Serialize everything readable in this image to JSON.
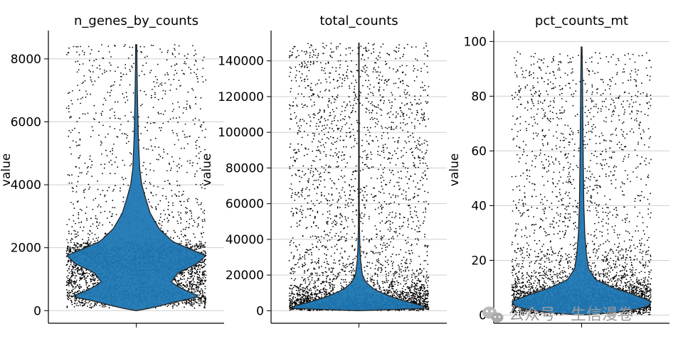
{
  "chart_data": [
    {
      "type": "violin",
      "title": "n_genes_by_counts",
      "ylabel": "value",
      "ylim": [
        -400,
        8900
      ],
      "yticks": [
        0,
        2000,
        4000,
        6000,
        8000
      ],
      "grid": true,
      "color": "#1f77b4",
      "violin_max": 8450,
      "violin_profile": [
        [
          0,
          0.0
        ],
        [
          100,
          0.25
        ],
        [
          300,
          0.6
        ],
        [
          450,
          0.92
        ],
        [
          650,
          0.7
        ],
        [
          900,
          0.5
        ],
        [
          1200,
          0.6
        ],
        [
          1500,
          0.88
        ],
        [
          1750,
          1.0
        ],
        [
          1950,
          0.78
        ],
        [
          2200,
          0.52
        ],
        [
          2600,
          0.33
        ],
        [
          3100,
          0.2
        ],
        [
          3600,
          0.13
        ],
        [
          4000,
          0.08
        ],
        [
          4500,
          0.05
        ],
        [
          5500,
          0.03
        ],
        [
          6500,
          0.02
        ],
        [
          7500,
          0.012
        ],
        [
          8450,
          0.008
        ]
      ],
      "points": {
        "min": 80,
        "max": 8450,
        "count": 4200
      }
    },
    {
      "type": "violin",
      "title": "total_counts",
      "ylabel": "value",
      "ylim": [
        -7000,
        157000
      ],
      "yticks": [
        0,
        20000,
        40000,
        60000,
        80000,
        100000,
        120000,
        140000
      ],
      "grid": true,
      "color": "#1f77b4",
      "violin_max": 150000,
      "violin_profile": [
        [
          0,
          0.0
        ],
        [
          500,
          0.7
        ],
        [
          1500,
          1.0
        ],
        [
          3000,
          0.9
        ],
        [
          5000,
          0.7
        ],
        [
          8000,
          0.45
        ],
        [
          12000,
          0.22
        ],
        [
          16000,
          0.1
        ],
        [
          20000,
          0.05
        ],
        [
          28000,
          0.025
        ],
        [
          35000,
          0.015
        ],
        [
          45000,
          0.008
        ],
        [
          60000,
          0.005
        ],
        [
          100000,
          0.004
        ],
        [
          150000,
          0.003
        ]
      ],
      "points": {
        "min": 0,
        "max": 150000,
        "count": 4200
      }
    },
    {
      "type": "violin",
      "title": "pct_counts_mt",
      "ylabel": "value",
      "ylim": [
        -3,
        104
      ],
      "yticks": [
        0,
        20,
        40,
        60,
        80,
        100
      ],
      "grid": true,
      "color": "#1f77b4",
      "violin_max": 98,
      "violin_profile": [
        [
          0,
          0.0
        ],
        [
          1,
          0.55
        ],
        [
          3,
          0.95
        ],
        [
          5,
          1.0
        ],
        [
          7,
          0.8
        ],
        [
          10,
          0.45
        ],
        [
          13,
          0.2
        ],
        [
          17,
          0.1
        ],
        [
          22,
          0.07
        ],
        [
          30,
          0.045
        ],
        [
          40,
          0.032
        ],
        [
          55,
          0.024
        ],
        [
          70,
          0.018
        ],
        [
          85,
          0.013
        ],
        [
          98,
          0.006
        ]
      ],
      "points": {
        "min": 0,
        "max": 96,
        "count": 4200
      }
    }
  ],
  "watermark": {
    "text": "公众号 · 生信漫卷",
    "icon": "wechat-icon"
  }
}
